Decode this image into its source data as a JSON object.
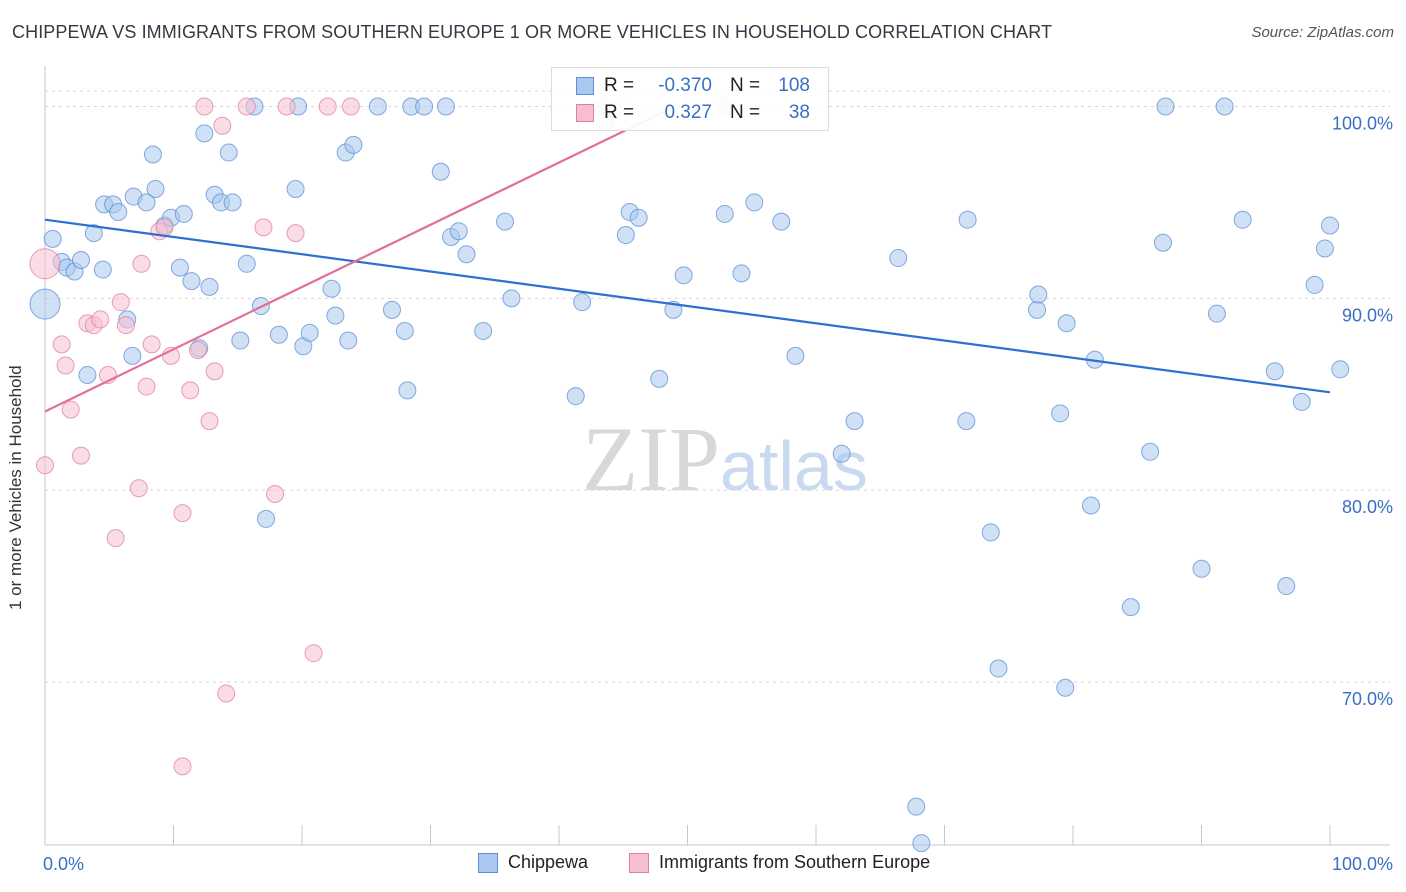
{
  "title": "CHIPPEWA VS IMMIGRANTS FROM SOUTHERN EUROPE 1 OR MORE VEHICLES IN HOUSEHOLD CORRELATION CHART",
  "source": "Source: ZipAtlas.com",
  "watermark": {
    "zip": "ZIP",
    "atlas": "atlas"
  },
  "legend": {
    "rows": [
      {
        "series": "Chippewa",
        "r_label": "R =",
        "r_value": "-0.370",
        "n_label": "N =",
        "n_value": "108",
        "fill": "#aac8ef",
        "stroke": "#5b8fd6"
      },
      {
        "series": "Immigrants from Southern Europe",
        "r_label": "R =",
        "r_value": "0.327",
        "n_label": "N =",
        "n_value": "38",
        "fill": "#f6bfd0",
        "stroke": "#e0809f"
      }
    ]
  },
  "bottom_legend": [
    "Chippewa",
    "Immigrants from Southern Europe"
  ],
  "chart_data": {
    "type": "scatter",
    "title": "CHIPPEWA VS IMMIGRANTS FROM SOUTHERN EUROPE 1 OR MORE VEHICLES IN HOUSEHOLD CORRELATION CHART",
    "xlabel": "",
    "ylabel": "1 or more Vehicles in Household",
    "xlim": [
      0,
      100
    ],
    "ylim": [
      61.5,
      101.8
    ],
    "x_tick_labels": [
      "0.0%",
      "100.0%"
    ],
    "y_ticks": [
      70,
      80,
      90,
      100
    ],
    "y_tick_labels": [
      "70.0%",
      "80.0%",
      "90.0%",
      "100.0%"
    ],
    "grid": true,
    "legend_position": "top-center",
    "colors": {
      "chippewa": "#5b8fd6",
      "chippewa_fill": "#aac8ef",
      "immigrants": "#e0809f",
      "immigrants_fill": "#f6bfd0",
      "axis_label": "#3a6fc4"
    },
    "series": [
      {
        "name": "Chippewa",
        "trend": {
          "x": [
            0,
            100
          ],
          "y": [
            94.1,
            85.1
          ]
        },
        "points": [
          [
            0.0,
            89.7
          ],
          [
            0.6,
            93.1
          ],
          [
            1.3,
            91.9
          ],
          [
            1.7,
            91.6
          ],
          [
            2.3,
            91.4
          ],
          [
            2.8,
            92.0
          ],
          [
            3.3,
            86.0
          ],
          [
            3.8,
            93.4
          ],
          [
            4.5,
            91.5
          ],
          [
            4.6,
            94.9
          ],
          [
            5.3,
            94.9
          ],
          [
            5.7,
            94.5
          ],
          [
            6.4,
            88.9
          ],
          [
            6.8,
            87.0
          ],
          [
            6.9,
            95.3
          ],
          [
            7.9,
            95.0
          ],
          [
            8.4,
            97.5
          ],
          [
            8.6,
            95.7
          ],
          [
            9.3,
            93.8
          ],
          [
            9.8,
            94.2
          ],
          [
            10.5,
            91.6
          ],
          [
            10.8,
            94.4
          ],
          [
            11.4,
            90.9
          ],
          [
            12.0,
            87.4
          ],
          [
            12.4,
            98.6
          ],
          [
            12.8,
            90.6
          ],
          [
            13.2,
            95.4
          ],
          [
            13.7,
            95.0
          ],
          [
            14.3,
            97.6
          ],
          [
            14.6,
            95.0
          ],
          [
            15.2,
            87.8
          ],
          [
            15.7,
            91.8
          ],
          [
            16.3,
            100.0
          ],
          [
            16.8,
            89.6
          ],
          [
            17.2,
            78.5
          ],
          [
            18.2,
            88.1
          ],
          [
            19.5,
            95.7
          ],
          [
            19.7,
            100.0
          ],
          [
            20.1,
            87.5
          ],
          [
            20.6,
            88.2
          ],
          [
            22.3,
            90.5
          ],
          [
            22.6,
            89.1
          ],
          [
            23.4,
            97.6
          ],
          [
            23.6,
            87.8
          ],
          [
            24.0,
            98.0
          ],
          [
            25.9,
            100.0
          ],
          [
            27.0,
            89.4
          ],
          [
            28.0,
            88.3
          ],
          [
            28.2,
            85.2
          ],
          [
            28.5,
            100.0
          ],
          [
            29.5,
            100.0
          ],
          [
            30.8,
            96.6
          ],
          [
            31.2,
            100.0
          ],
          [
            31.6,
            93.2
          ],
          [
            32.2,
            93.5
          ],
          [
            32.8,
            92.3
          ],
          [
            34.1,
            88.3
          ],
          [
            35.8,
            94.0
          ],
          [
            36.3,
            90.0
          ],
          [
            41.3,
            84.9
          ],
          [
            41.8,
            89.8
          ],
          [
            43.3,
            100.0
          ],
          [
            43.6,
            99.2
          ],
          [
            45.2,
            93.3
          ],
          [
            45.5,
            94.5
          ],
          [
            46.2,
            94.2
          ],
          [
            47.8,
            85.8
          ],
          [
            48.9,
            89.4
          ],
          [
            49.7,
            91.2
          ],
          [
            52.9,
            94.4
          ],
          [
            53.0,
            100.0
          ],
          [
            54.2,
            91.3
          ],
          [
            55.2,
            95.0
          ],
          [
            57.3,
            94.0
          ],
          [
            58.4,
            87.0
          ],
          [
            62.0,
            81.9
          ],
          [
            63.0,
            83.6
          ],
          [
            66.4,
            92.1
          ],
          [
            67.8,
            63.5
          ],
          [
            68.2,
            61.6
          ],
          [
            71.7,
            83.6
          ],
          [
            71.8,
            94.1
          ],
          [
            73.6,
            77.8
          ],
          [
            74.2,
            70.7
          ],
          [
            77.2,
            89.4
          ],
          [
            77.3,
            90.2
          ],
          [
            79.0,
            84.0
          ],
          [
            79.4,
            69.7
          ],
          [
            79.5,
            88.7
          ],
          [
            81.4,
            79.2
          ],
          [
            81.7,
            86.8
          ],
          [
            84.5,
            73.9
          ],
          [
            86.0,
            82.0
          ],
          [
            87.0,
            92.9
          ],
          [
            87.2,
            100.0
          ],
          [
            90.0,
            75.9
          ],
          [
            91.2,
            89.2
          ],
          [
            91.8,
            100.0
          ],
          [
            93.2,
            94.1
          ],
          [
            95.7,
            86.2
          ],
          [
            96.6,
            75.0
          ],
          [
            97.8,
            84.6
          ],
          [
            98.8,
            90.7
          ],
          [
            99.6,
            92.6
          ],
          [
            100.0,
            93.8
          ],
          [
            100.8,
            86.3
          ]
        ]
      },
      {
        "name": "Immigrants from Southern Europe",
        "trend": {
          "x": [
            0,
            49
          ],
          "y": [
            84.1,
            100.0
          ]
        },
        "points": [
          [
            0.0,
            91.8
          ],
          [
            0.0,
            81.3
          ],
          [
            1.3,
            87.6
          ],
          [
            1.6,
            86.5
          ],
          [
            2.0,
            84.2
          ],
          [
            2.8,
            81.8
          ],
          [
            3.3,
            88.7
          ],
          [
            3.8,
            88.6
          ],
          [
            4.3,
            88.9
          ],
          [
            4.9,
            86.0
          ],
          [
            5.5,
            77.5
          ],
          [
            5.9,
            89.8
          ],
          [
            6.3,
            88.6
          ],
          [
            7.3,
            80.1
          ],
          [
            7.5,
            91.8
          ],
          [
            7.9,
            85.4
          ],
          [
            8.3,
            87.6
          ],
          [
            8.9,
            93.5
          ],
          [
            9.3,
            93.7
          ],
          [
            9.8,
            87.0
          ],
          [
            10.7,
            78.8
          ],
          [
            10.7,
            65.6
          ],
          [
            11.3,
            85.2
          ],
          [
            11.9,
            87.3
          ],
          [
            12.4,
            100.0
          ],
          [
            12.8,
            83.6
          ],
          [
            13.2,
            86.2
          ],
          [
            13.8,
            99.0
          ],
          [
            14.1,
            69.4
          ],
          [
            15.7,
            100.0
          ],
          [
            17.0,
            93.7
          ],
          [
            17.9,
            79.8
          ],
          [
            18.8,
            100.0
          ],
          [
            19.5,
            93.4
          ],
          [
            20.9,
            71.5
          ],
          [
            22.0,
            100.0
          ],
          [
            23.8,
            100.0
          ],
          [
            44.7,
            100.0
          ]
        ]
      }
    ]
  }
}
